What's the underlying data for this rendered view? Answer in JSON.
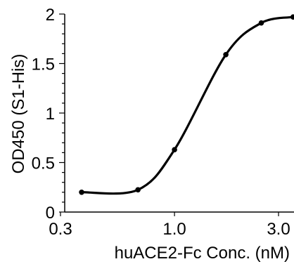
{
  "chart_data": {
    "type": "line",
    "xlabel": "huACE2-Fc Conc. (nM)",
    "ylabel": "OD450 (S1-His)",
    "x_scale": "log",
    "xlim": [
      0.3,
      3.5
    ],
    "ylim": [
      0,
      2
    ],
    "x_major_ticks": [
      {
        "value": 0.3,
        "label": "0.3"
      },
      {
        "value": 1.0,
        "label": "1.0"
      },
      {
        "value": 3.0,
        "label": "3.0"
      }
    ],
    "y_major_ticks": [
      {
        "value": 0,
        "label": "0"
      },
      {
        "value": 0.5,
        "label": "0.5"
      },
      {
        "value": 1,
        "label": "1"
      },
      {
        "value": 1.5,
        "label": "1.5"
      },
      {
        "value": 2,
        "label": "2"
      }
    ],
    "y_minor_step": 0.1,
    "series": [
      {
        "x": [
          0.375,
          0.68,
          1.0,
          1.72,
          2.5,
          3.5
        ],
        "y": [
          0.2,
          0.225,
          0.63,
          1.59,
          1.91,
          1.97
        ]
      }
    ],
    "grid": false,
    "colors": {
      "line": "#000000",
      "axis": "#000000",
      "background": "#ffffff"
    }
  }
}
